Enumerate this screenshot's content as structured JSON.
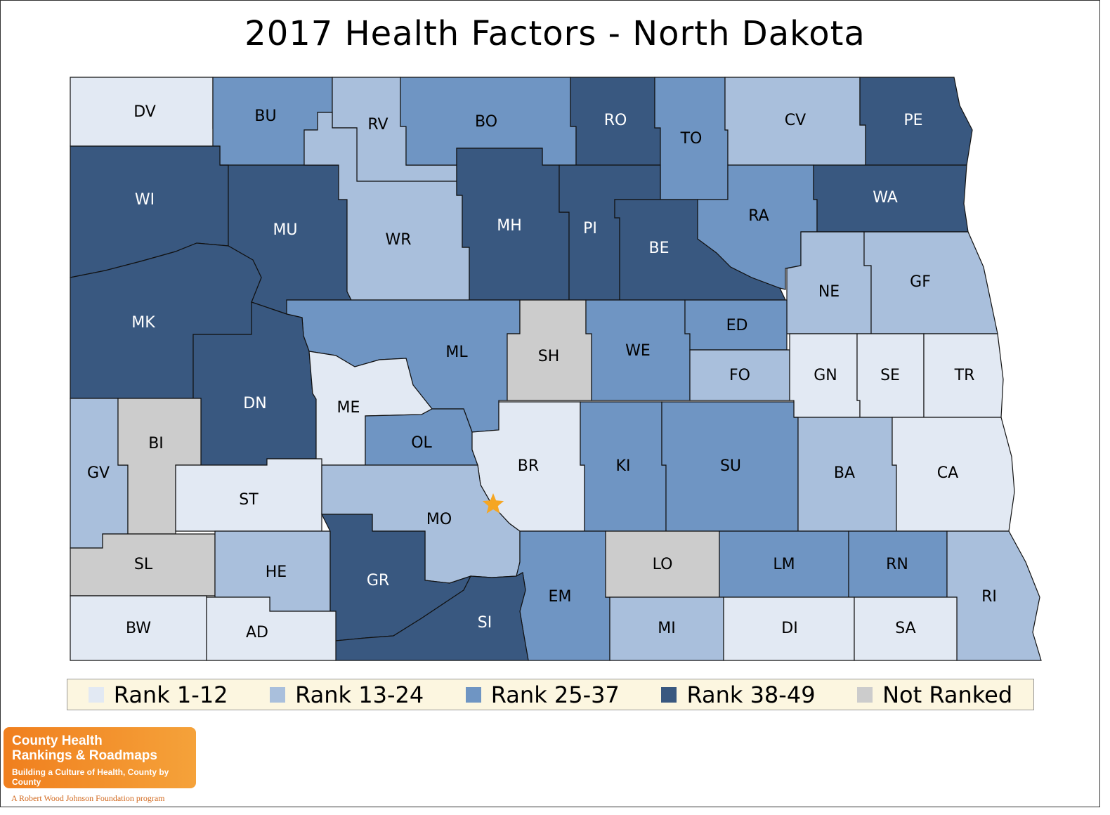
{
  "title": "2017 Health Factors - North Dakota",
  "colors": {
    "rank_1_12": "#e2e9f3",
    "rank_13_24": "#a9bfdc",
    "rank_25_37": "#6f95c3",
    "rank_38_49": "#395880",
    "not_ranked": "#cccccc",
    "capital_star": "#f5a623"
  },
  "legend": [
    {
      "label": "Rank 1-12",
      "category": "rank_1_12"
    },
    {
      "label": "Rank 13-24",
      "category": "rank_13_24"
    },
    {
      "label": "Rank 25-37",
      "category": "rank_25_37"
    },
    {
      "label": "Rank 38-49",
      "category": "rank_38_49"
    },
    {
      "label": "Not Ranked",
      "category": "not_ranked"
    }
  ],
  "counties": [
    {
      "abbr": "DV",
      "category": "rank_1_12"
    },
    {
      "abbr": "BU",
      "category": "rank_25_37"
    },
    {
      "abbr": "RV",
      "category": "rank_13_24"
    },
    {
      "abbr": "BO",
      "category": "rank_25_37"
    },
    {
      "abbr": "RO",
      "category": "rank_38_49"
    },
    {
      "abbr": "TO",
      "category": "rank_25_37"
    },
    {
      "abbr": "CV",
      "category": "rank_13_24"
    },
    {
      "abbr": "PE",
      "category": "rank_38_49"
    },
    {
      "abbr": "WI",
      "category": "rank_38_49"
    },
    {
      "abbr": "MU",
      "category": "rank_38_49"
    },
    {
      "abbr": "WR",
      "category": "rank_13_24"
    },
    {
      "abbr": "MH",
      "category": "rank_38_49"
    },
    {
      "abbr": "PI",
      "category": "rank_38_49"
    },
    {
      "abbr": "BE",
      "category": "rank_38_49"
    },
    {
      "abbr": "RA",
      "category": "rank_25_37"
    },
    {
      "abbr": "WA",
      "category": "rank_38_49"
    },
    {
      "abbr": "MK",
      "category": "rank_38_49"
    },
    {
      "abbr": "NE",
      "category": "rank_13_24"
    },
    {
      "abbr": "GF",
      "category": "rank_13_24"
    },
    {
      "abbr": "ML",
      "category": "rank_25_37"
    },
    {
      "abbr": "SH",
      "category": "not_ranked"
    },
    {
      "abbr": "WE",
      "category": "rank_25_37"
    },
    {
      "abbr": "ED",
      "category": "rank_25_37"
    },
    {
      "abbr": "FO",
      "category": "rank_13_24"
    },
    {
      "abbr": "GN",
      "category": "rank_1_12"
    },
    {
      "abbr": "SE",
      "category": "rank_1_12"
    },
    {
      "abbr": "TR",
      "category": "rank_1_12"
    },
    {
      "abbr": "DN",
      "category": "rank_38_49"
    },
    {
      "abbr": "ME",
      "category": "rank_1_12"
    },
    {
      "abbr": "OL",
      "category": "rank_25_37"
    },
    {
      "abbr": "BR",
      "category": "rank_1_12"
    },
    {
      "abbr": "KI",
      "category": "rank_25_37"
    },
    {
      "abbr": "SU",
      "category": "rank_25_37"
    },
    {
      "abbr": "BA",
      "category": "rank_13_24"
    },
    {
      "abbr": "CA",
      "category": "rank_1_12"
    },
    {
      "abbr": "GV",
      "category": "rank_13_24"
    },
    {
      "abbr": "BI",
      "category": "not_ranked"
    },
    {
      "abbr": "ST",
      "category": "rank_1_12"
    },
    {
      "abbr": "MO",
      "category": "rank_13_24"
    },
    {
      "abbr": "SL",
      "category": "not_ranked"
    },
    {
      "abbr": "HE",
      "category": "rank_13_24"
    },
    {
      "abbr": "GR",
      "category": "rank_38_49"
    },
    {
      "abbr": "EM",
      "category": "rank_25_37"
    },
    {
      "abbr": "LO",
      "category": "not_ranked"
    },
    {
      "abbr": "LM",
      "category": "rank_25_37"
    },
    {
      "abbr": "RN",
      "category": "rank_25_37"
    },
    {
      "abbr": "RI",
      "category": "rank_13_24"
    },
    {
      "abbr": "SI",
      "category": "rank_38_49"
    },
    {
      "abbr": "BW",
      "category": "rank_1_12"
    },
    {
      "abbr": "AD",
      "category": "rank_1_12"
    },
    {
      "abbr": "MI",
      "category": "rank_13_24"
    },
    {
      "abbr": "DI",
      "category": "rank_1_12"
    },
    {
      "abbr": "SA",
      "category": "rank_1_12"
    }
  ],
  "logo": {
    "name_line1": "County Health",
    "name_line2": "Rankings & Roadmaps",
    "tagline": "Building a Culture of Health, County by County",
    "footer": "A Robert Wood Johnson Foundation program"
  }
}
